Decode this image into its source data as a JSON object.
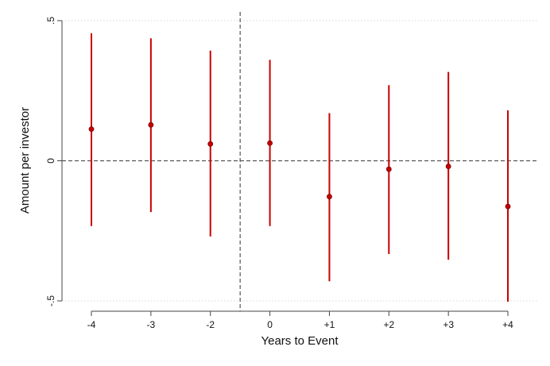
{
  "chart_data": {
    "type": "scatter",
    "subtype": "coefficient-plot-with-error-bars",
    "xlabel": "Years to Event",
    "ylabel": "Amount per investor",
    "categories": [
      "-4",
      "-3",
      "-2",
      "0",
      "+1",
      "+2",
      "+3",
      "+4"
    ],
    "series": [
      {
        "estimates": [
          0.113,
          0.128,
          0.06,
          0.063,
          -0.128,
          -0.03,
          -0.02,
          -0.163
        ],
        "ci_lower": [
          -0.233,
          -0.183,
          -0.27,
          -0.233,
          -0.43,
          -0.333,
          -0.353,
          -0.503
        ],
        "ci_upper": [
          0.455,
          0.437,
          0.393,
          0.36,
          0.17,
          0.27,
          0.317,
          0.18
        ]
      }
    ],
    "ylim": [
      -0.5,
      0.5
    ],
    "y_ticks": [
      {
        "value": 0.5,
        "label": ".5"
      },
      {
        "value": 0,
        "label": "0"
      },
      {
        "value": -0.5,
        "label": "-.5"
      }
    ],
    "reference_lines": {
      "horizontal_at_y": 0,
      "vertical_between": [
        "-2",
        "0"
      ]
    },
    "grid": true,
    "legend": "none",
    "colors": {
      "marker": "#c80000",
      "error_bar": "#c80000",
      "reference_line": "#555555",
      "grid": "#d8d8d8"
    }
  }
}
